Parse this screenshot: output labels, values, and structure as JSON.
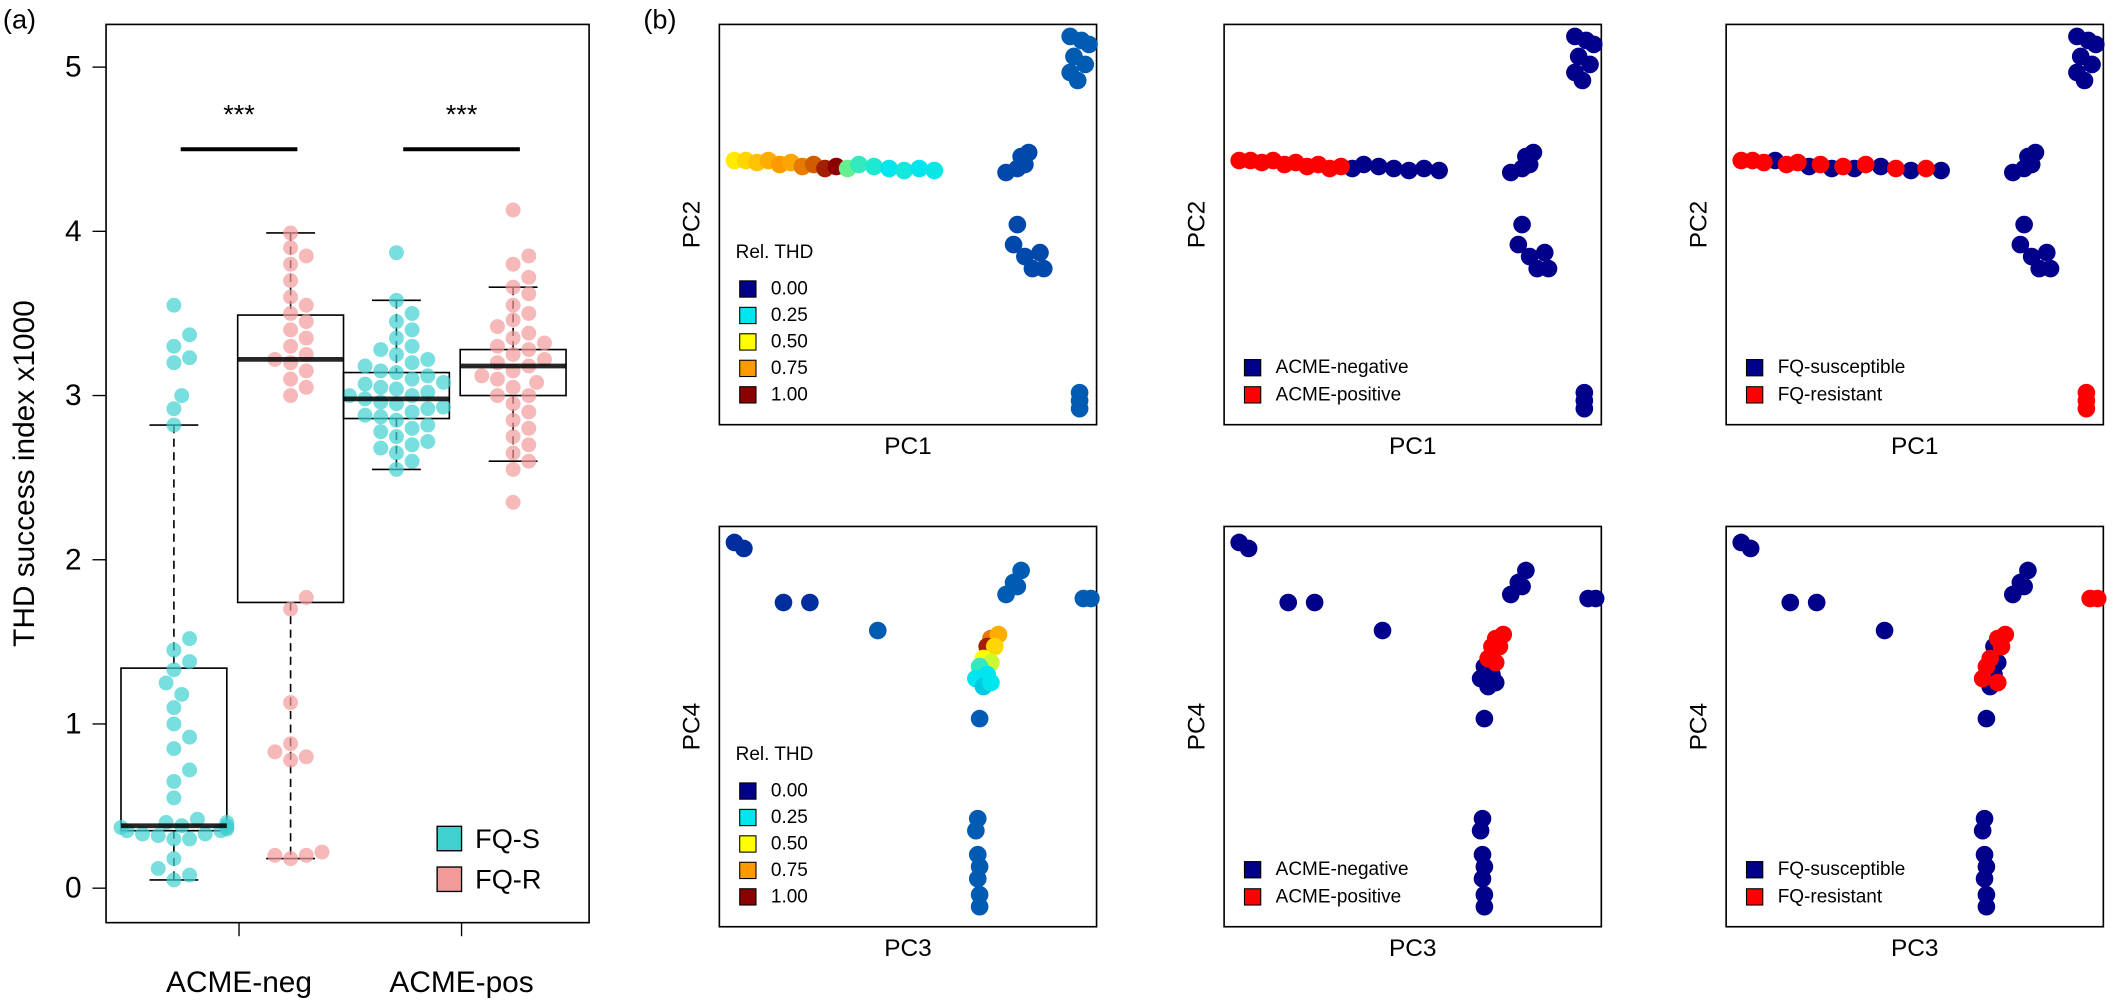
{
  "panel_labels": [
    "(a)",
    "(b)"
  ],
  "chart_data": [
    {
      "type": "box",
      "ylabel": "THD success index x1000",
      "categories": [
        "ACME-neg",
        "ACME-pos"
      ],
      "ylim": [
        -0.21,
        5.26
      ],
      "yticks": [
        0,
        1,
        2,
        3,
        4,
        5
      ],
      "significance": [
        {
          "label": "***",
          "category": 0,
          "y": 4.5
        },
        {
          "label": "***",
          "category": 1,
          "y": 4.5
        }
      ],
      "series": [
        {
          "name": "FQ-S",
          "color": "#3fd0d0",
          "boxes": [
            {
              "low": 0.05,
              "q1": 0.35,
              "median": 0.38,
              "q3": 1.34,
              "high": 2.82,
              "points": [
                0.05,
                0.08,
                0.12,
                0.18,
                0.3,
                0.3,
                0.32,
                0.33,
                0.33,
                0.35,
                0.35,
                0.36,
                0.37,
                0.37,
                0.38,
                0.38,
                0.4,
                0.4,
                0.42,
                0.55,
                0.65,
                0.72,
                0.85,
                0.92,
                1.0,
                1.1,
                1.18,
                1.25,
                1.33,
                1.38,
                1.45,
                1.52,
                2.82,
                2.92,
                3.0,
                3.2,
                3.23,
                3.3,
                3.37,
                3.55
              ]
            },
            {
              "low": 2.55,
              "q1": 2.86,
              "median": 2.98,
              "q3": 3.14,
              "high": 3.58,
              "points": [
                2.55,
                2.6,
                2.65,
                2.68,
                2.7,
                2.72,
                2.75,
                2.78,
                2.8,
                2.82,
                2.85,
                2.87,
                2.88,
                2.9,
                2.92,
                2.93,
                2.95,
                2.96,
                2.98,
                3.0,
                3.0,
                3.02,
                3.04,
                3.05,
                3.07,
                3.08,
                3.1,
                3.12,
                3.14,
                3.15,
                3.18,
                3.2,
                3.22,
                3.25,
                3.28,
                3.3,
                3.35,
                3.4,
                3.45,
                3.5,
                3.58,
                3.87
              ]
            }
          ]
        },
        {
          "name": "FQ-R",
          "color": "#f29a9a",
          "boxes": [
            {
              "low": 0.18,
              "q1": 1.74,
              "median": 3.22,
              "q3": 3.49,
              "high": 3.99,
              "points": [
                0.18,
                0.2,
                0.2,
                0.22,
                0.78,
                0.8,
                0.83,
                0.88,
                1.13,
                1.7,
                1.77,
                3.0,
                3.05,
                3.1,
                3.15,
                3.2,
                3.22,
                3.25,
                3.3,
                3.35,
                3.4,
                3.45,
                3.5,
                3.55,
                3.6,
                3.7,
                3.8,
                3.85,
                3.9,
                3.99
              ]
            },
            {
              "low": 2.6,
              "q1": 3.0,
              "median": 3.18,
              "q3": 3.28,
              "high": 3.66,
              "points": [
                2.35,
                2.55,
                2.6,
                2.65,
                2.7,
                2.75,
                2.8,
                2.85,
                2.9,
                2.95,
                3.0,
                3.0,
                3.05,
                3.08,
                3.1,
                3.12,
                3.15,
                3.18,
                3.2,
                3.22,
                3.25,
                3.28,
                3.3,
                3.32,
                3.35,
                3.38,
                3.42,
                3.46,
                3.5,
                3.55,
                3.62,
                3.66,
                3.72,
                3.8,
                3.85,
                4.13
              ]
            }
          ]
        }
      ]
    },
    {
      "type": "scatter",
      "xlabel": "PC1",
      "ylabel": "PC2",
      "xlim": [
        0,
        1
      ],
      "ylim": [
        0,
        1
      ],
      "legend_title": "Rel. THD",
      "colorscale": [
        {
          "value": 0,
          "label": "0.00",
          "color": "#00008b"
        },
        {
          "value": 0.25,
          "label": "0.25",
          "color": "#00e5ee"
        },
        {
          "value": 0.5,
          "label": "0.50",
          "color": "#ffff00"
        },
        {
          "value": 0.75,
          "label": "0.75",
          "color": "#ff9900"
        },
        {
          "value": 1,
          "label": "1.00",
          "color": "#8b0000"
        }
      ],
      "points": {
        "x": [
          0.04,
          0.07,
          0.1,
          0.13,
          0.16,
          0.19,
          0.22,
          0.25,
          0.28,
          0.31,
          0.34,
          0.37,
          0.41,
          0.45,
          0.49,
          0.53,
          0.57,
          0.76,
          0.79,
          0.8,
          0.82,
          0.81,
          0.79,
          0.78,
          0.81,
          0.85,
          0.83,
          0.86,
          0.93,
          0.96,
          0.98,
          0.94,
          0.97,
          0.93,
          0.95,
          0.955,
          0.955,
          0.955
        ],
        "y": [
          0.66,
          0.66,
          0.655,
          0.66,
          0.65,
          0.655,
          0.645,
          0.65,
          0.64,
          0.645,
          0.64,
          0.65,
          0.645,
          0.64,
          0.635,
          0.64,
          0.635,
          0.63,
          0.64,
          0.67,
          0.68,
          0.65,
          0.5,
          0.45,
          0.42,
          0.43,
          0.39,
          0.39,
          0.97,
          0.96,
          0.95,
          0.92,
          0.9,
          0.88,
          0.86,
          0.08,
          0.06,
          0.04
        ],
        "z": [
          0.55,
          0.6,
          0.65,
          0.7,
          0.75,
          0.72,
          0.8,
          0.85,
          0.95,
          1.0,
          0.35,
          0.3,
          0.28,
          0.25,
          0.27,
          0.25,
          0.26,
          0.08,
          0.08,
          0.08,
          0.08,
          0.08,
          0.08,
          0.08,
          0.08,
          0.08,
          0.08,
          0.08,
          0.1,
          0.1,
          0.1,
          0.1,
          0.1,
          0.1,
          0.1,
          0.1,
          0.1,
          0.1
        ]
      }
    },
    {
      "type": "scatter",
      "xlabel": "PC1",
      "ylabel": "PC2",
      "xlim": [
        0,
        1
      ],
      "ylim": [
        0,
        1
      ],
      "series": [
        {
          "name": "ACME-negative",
          "color": "#00008b",
          "x": [
            0.34,
            0.37,
            0.41,
            0.45,
            0.49,
            0.53,
            0.57,
            0.76,
            0.79,
            0.8,
            0.82,
            0.81,
            0.79,
            0.78,
            0.81,
            0.85,
            0.83,
            0.86,
            0.93,
            0.96,
            0.98,
            0.94,
            0.97,
            0.93,
            0.95,
            0.955,
            0.955,
            0.955
          ],
          "y": [
            0.64,
            0.65,
            0.645,
            0.64,
            0.635,
            0.64,
            0.635,
            0.63,
            0.64,
            0.67,
            0.68,
            0.65,
            0.5,
            0.45,
            0.42,
            0.43,
            0.39,
            0.39,
            0.97,
            0.96,
            0.95,
            0.92,
            0.9,
            0.88,
            0.86,
            0.08,
            0.06,
            0.04
          ]
        },
        {
          "name": "ACME-positive",
          "color": "#ff0000",
          "x": [
            0.04,
            0.07,
            0.1,
            0.13,
            0.16,
            0.19,
            0.22,
            0.25,
            0.28,
            0.31
          ],
          "y": [
            0.66,
            0.66,
            0.655,
            0.66,
            0.65,
            0.655,
            0.645,
            0.65,
            0.64,
            0.645
          ]
        }
      ]
    },
    {
      "type": "scatter",
      "xlabel": "PC1",
      "ylabel": "PC2",
      "xlim": [
        0,
        1
      ],
      "ylim": [
        0,
        1
      ],
      "series": [
        {
          "name": "FQ-susceptible",
          "color": "#00008b",
          "x": [
            0.13,
            0.22,
            0.28,
            0.34,
            0.41,
            0.49,
            0.57,
            0.76,
            0.79,
            0.8,
            0.82,
            0.81,
            0.79,
            0.78,
            0.81,
            0.85,
            0.83,
            0.86,
            0.93,
            0.96,
            0.98,
            0.94,
            0.97,
            0.93,
            0.95
          ],
          "y": [
            0.66,
            0.645,
            0.64,
            0.64,
            0.645,
            0.635,
            0.635,
            0.63,
            0.64,
            0.67,
            0.68,
            0.65,
            0.5,
            0.45,
            0.42,
            0.43,
            0.39,
            0.39,
            0.97,
            0.96,
            0.95,
            0.92,
            0.9,
            0.88,
            0.86
          ]
        },
        {
          "name": "FQ-resistant",
          "color": "#ff0000",
          "x": [
            0.04,
            0.07,
            0.1,
            0.16,
            0.19,
            0.25,
            0.31,
            0.37,
            0.45,
            0.53,
            0.955,
            0.955,
            0.955
          ],
          "y": [
            0.66,
            0.66,
            0.655,
            0.65,
            0.655,
            0.65,
            0.645,
            0.65,
            0.64,
            0.64,
            0.08,
            0.06,
            0.04
          ]
        }
      ]
    },
    {
      "type": "scatter",
      "xlabel": "PC3",
      "ylabel": "PC4",
      "xlim": [
        0,
        1
      ],
      "ylim": [
        0,
        1
      ],
      "legend_title": "Rel. THD",
      "colorscale": [
        {
          "value": 0,
          "label": "0.00",
          "color": "#00008b"
        },
        {
          "value": 0.25,
          "label": "0.25",
          "color": "#00e5ee"
        },
        {
          "value": 0.5,
          "label": "0.50",
          "color": "#ffff00"
        },
        {
          "value": 0.75,
          "label": "0.75",
          "color": "#ff9900"
        },
        {
          "value": 1,
          "label": "1.00",
          "color": "#8b0000"
        }
      ],
      "points": {
        "x": [
          0.04,
          0.065,
          0.17,
          0.24,
          0.42,
          0.76,
          0.78,
          0.8,
          0.79,
          0.965,
          0.985,
          0.72,
          0.74,
          0.71,
          0.73,
          0.7,
          0.72,
          0.69,
          0.71,
          0.68,
          0.7,
          0.72,
          0.69,
          0.685,
          0.68,
          0.685,
          0.69,
          0.685,
          0.69,
          0.69
        ],
        "y": [
          0.96,
          0.945,
          0.81,
          0.81,
          0.74,
          0.83,
          0.86,
          0.89,
          0.85,
          0.82,
          0.82,
          0.72,
          0.73,
          0.7,
          0.7,
          0.67,
          0.66,
          0.65,
          0.63,
          0.62,
          0.6,
          0.61,
          0.52,
          0.27,
          0.24,
          0.18,
          0.15,
          0.12,
          0.08,
          0.05
        ],
        "z": [
          0.05,
          0.05,
          0.05,
          0.05,
          0.1,
          0.1,
          0.1,
          0.1,
          0.1,
          0.1,
          0.1,
          0.8,
          0.7,
          0.95,
          0.6,
          0.5,
          0.45,
          0.3,
          0.25,
          0.25,
          0.22,
          0.25,
          0.1,
          0.1,
          0.1,
          0.1,
          0.1,
          0.1,
          0.1,
          0.1
        ]
      }
    },
    {
      "type": "scatter",
      "xlabel": "PC3",
      "ylabel": "PC4",
      "xlim": [
        0,
        1
      ],
      "ylim": [
        0,
        1
      ],
      "series": [
        {
          "name": "ACME-negative",
          "color": "#00008b",
          "x": [
            0.04,
            0.065,
            0.17,
            0.24,
            0.42,
            0.76,
            0.78,
            0.8,
            0.79,
            0.965,
            0.985,
            0.69,
            0.71,
            0.68,
            0.7,
            0.72,
            0.69,
            0.685,
            0.68,
            0.685,
            0.69,
            0.685,
            0.69,
            0.69
          ],
          "y": [
            0.96,
            0.945,
            0.81,
            0.81,
            0.74,
            0.83,
            0.86,
            0.89,
            0.85,
            0.82,
            0.82,
            0.65,
            0.63,
            0.62,
            0.6,
            0.61,
            0.52,
            0.27,
            0.24,
            0.18,
            0.15,
            0.12,
            0.08,
            0.05
          ]
        },
        {
          "name": "ACME-positive",
          "color": "#ff0000",
          "x": [
            0.72,
            0.74,
            0.71,
            0.73,
            0.7,
            0.72
          ],
          "y": [
            0.72,
            0.73,
            0.7,
            0.7,
            0.67,
            0.66
          ]
        }
      ]
    },
    {
      "type": "scatter",
      "xlabel": "PC3",
      "ylabel": "PC4",
      "xlim": [
        0,
        1
      ],
      "ylim": [
        0,
        1
      ],
      "series": [
        {
          "name": "FQ-susceptible",
          "color": "#00008b",
          "x": [
            0.04,
            0.065,
            0.17,
            0.24,
            0.42,
            0.76,
            0.78,
            0.8,
            0.79,
            0.71,
            0.72,
            0.71,
            0.7,
            0.69,
            0.685,
            0.68,
            0.685,
            0.69,
            0.685,
            0.69,
            0.69
          ],
          "y": [
            0.96,
            0.945,
            0.81,
            0.81,
            0.74,
            0.83,
            0.86,
            0.89,
            0.85,
            0.7,
            0.66,
            0.63,
            0.6,
            0.52,
            0.27,
            0.24,
            0.18,
            0.15,
            0.12,
            0.08,
            0.05
          ]
        },
        {
          "name": "FQ-resistant",
          "color": "#ff0000",
          "x": [
            0.965,
            0.985,
            0.72,
            0.74,
            0.73,
            0.7,
            0.69,
            0.68,
            0.72
          ],
          "y": [
            0.82,
            0.82,
            0.72,
            0.73,
            0.7,
            0.67,
            0.65,
            0.62,
            0.61
          ]
        }
      ]
    }
  ]
}
